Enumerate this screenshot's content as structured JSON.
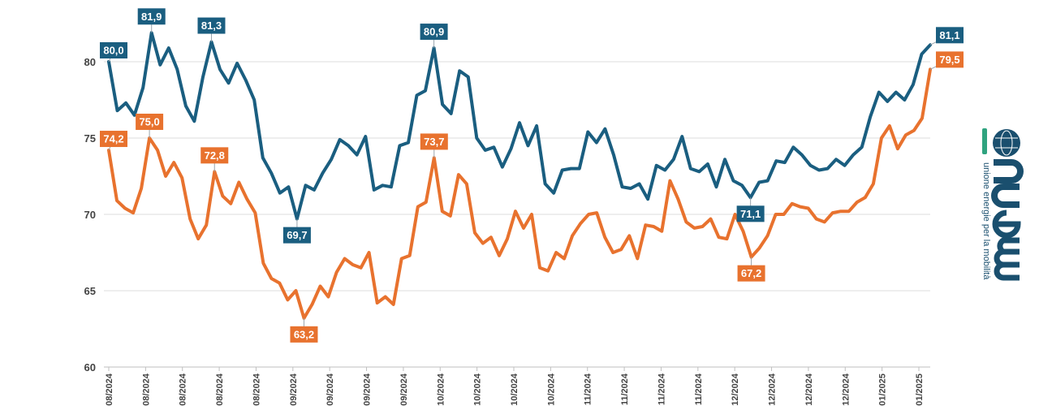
{
  "chart_data": {
    "type": "line",
    "title": "",
    "xlabel": "",
    "ylabel": "",
    "ylim": [
      60,
      83
    ],
    "yticks": [
      60,
      65,
      70,
      75,
      80
    ],
    "grid": true,
    "x_tick_labels": [
      "08/2024",
      "08/2024",
      "08/2024",
      "08/2024",
      "08/2024",
      "09/2024",
      "09/2024",
      "09/2024",
      "09/2024",
      "10/2024",
      "10/2024",
      "10/2024",
      "10/2024",
      "11/2024",
      "11/2024",
      "11/2024",
      "11/2024",
      "12/2024",
      "12/2024",
      "12/2024",
      "12/2024",
      "01/2025",
      "01/2025"
    ],
    "series": [
      {
        "color": "#1a5e80",
        "values": [
          80.0,
          76.8,
          77.3,
          76.5,
          78.3,
          81.9,
          79.8,
          80.9,
          79.5,
          77.1,
          76.1,
          79.0,
          81.3,
          79.5,
          78.6,
          79.9,
          78.8,
          77.5,
          73.7,
          72.7,
          71.4,
          71.8,
          69.7,
          71.9,
          71.6,
          72.7,
          73.6,
          74.9,
          74.5,
          73.9,
          75.1,
          71.6,
          71.9,
          71.8,
          74.5,
          74.7,
          77.8,
          78.1,
          80.9,
          77.2,
          76.6,
          79.4,
          79.0,
          75.0,
          74.2,
          74.4,
          73.1,
          74.3,
          76.0,
          74.5,
          75.8,
          72.0,
          71.4,
          72.9,
          73.0,
          73.0,
          75.4,
          74.7,
          75.6,
          73.9,
          71.8,
          71.7,
          72.0,
          71.0,
          73.2,
          72.9,
          73.6,
          75.1,
          73.0,
          72.8,
          73.3,
          71.8,
          73.6,
          72.2,
          71.9,
          71.1,
          72.1,
          72.2,
          73.5,
          73.4,
          74.4,
          73.9,
          73.2,
          72.9,
          73.0,
          73.6,
          73.2,
          73.9,
          74.4,
          76.4,
          78.0,
          77.4,
          78.0,
          77.5,
          78.5,
          80.5,
          81.1
        ],
        "labels": [
          {
            "index": 0,
            "text": "80,0"
          },
          {
            "index": 5,
            "text": "81,9"
          },
          {
            "index": 12,
            "text": "81,3"
          },
          {
            "index": 22,
            "text": "69,7"
          },
          {
            "index": 38,
            "text": "80,9"
          },
          {
            "index": 75,
            "text": "71,1"
          },
          {
            "index": 96,
            "text": "81,1"
          }
        ]
      },
      {
        "color": "#e8722e",
        "values": [
          74.2,
          70.9,
          70.4,
          70.1,
          71.7,
          75.0,
          74.2,
          72.5,
          73.4,
          72.4,
          69.7,
          68.4,
          69.3,
          72.8,
          71.2,
          70.7,
          72.1,
          71.0,
          70.1,
          66.8,
          65.8,
          65.5,
          64.4,
          65.0,
          63.2,
          64.1,
          65.3,
          64.6,
          66.2,
          67.1,
          66.7,
          66.5,
          67.5,
          64.2,
          64.6,
          64.1,
          67.1,
          67.3,
          70.5,
          70.8,
          73.7,
          70.2,
          69.9,
          72.6,
          72.0,
          68.8,
          68.1,
          68.5,
          67.3,
          68.4,
          70.2,
          69.1,
          70.0,
          66.5,
          66.3,
          67.5,
          67.1,
          68.6,
          69.4,
          70.0,
          70.1,
          68.5,
          67.5,
          67.7,
          68.6,
          67.1,
          69.3,
          69.2,
          68.9,
          72.2,
          71.0,
          69.5,
          69.1,
          69.2,
          69.7,
          68.5,
          68.4,
          70.0,
          68.9,
          67.2,
          67.8,
          68.6,
          70.0,
          70.0,
          70.7,
          70.5,
          70.4,
          69.7,
          69.5,
          70.1,
          70.2,
          70.2,
          70.8,
          71.1,
          72.0,
          75.0,
          75.8,
          74.3,
          75.2,
          75.5,
          76.3,
          79.5
        ],
        "labels": [
          {
            "index": 0,
            "text": "74,2"
          },
          {
            "index": 5,
            "text": "75,0"
          },
          {
            "index": 13,
            "text": "72,8"
          },
          {
            "index": 24,
            "text": "63,2"
          },
          {
            "index": 40,
            "text": "73,7"
          },
          {
            "index": 79,
            "text": "67,2"
          },
          {
            "index": 101,
            "text": "79,5"
          }
        ]
      }
    ]
  },
  "logo": {
    "tagline": "unione energie per la mobilità",
    "brand_color": "#1a4f6e",
    "accent_color": "#2fa37f"
  }
}
